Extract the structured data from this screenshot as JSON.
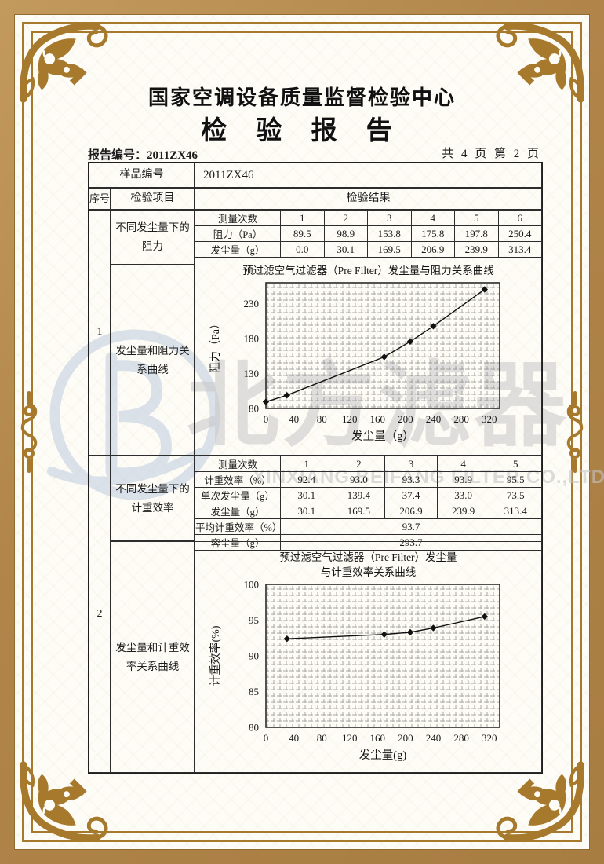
{
  "header": {
    "center_name": "国家空调设备质量监督检验中心",
    "doc_title": "检 验 报 告",
    "report_no_label": "报告编号：",
    "report_no": "2011ZX46",
    "page_info": "共 4 页 第 2 页"
  },
  "table": {
    "sample_label": "样品编号",
    "sample_no": "2011ZX46",
    "col_seq": "序号",
    "col_item": "检验项目",
    "col_result": "检验结果",
    "row1": {
      "seq": "1",
      "item_a": "不同发尘量下的阻力",
      "item_b": "发尘量和阻力关系曲线"
    },
    "row2": {
      "seq": "2",
      "item_a": "不同发尘量下的计重效率",
      "item_b": "发尘量和计重效率关系曲线"
    }
  },
  "resistance_table": {
    "rows": [
      {
        "label": "测量次数",
        "values": [
          "1",
          "2",
          "3",
          "4",
          "5",
          "6"
        ]
      },
      {
        "label": "阻力（Pa）",
        "values": [
          "89.5",
          "98.9",
          "153.8",
          "175.8",
          "197.8",
          "250.4"
        ]
      },
      {
        "label": "发尘量（g）",
        "values": [
          "0.0",
          "30.1",
          "169.5",
          "206.9",
          "239.9",
          "313.4"
        ]
      }
    ]
  },
  "efficiency_table": {
    "rows": [
      {
        "label": "测量次数",
        "values": [
          "1",
          "2",
          "3",
          "4",
          "5"
        ]
      },
      {
        "label": "计重效率（%）",
        "values": [
          "92.4",
          "93.0",
          "93.3",
          "93.9",
          "95.5"
        ]
      },
      {
        "label": "单次发尘量（g）",
        "values": [
          "30.1",
          "139.4",
          "37.4",
          "33.0",
          "73.5"
        ]
      },
      {
        "label": "发尘量（g）",
        "values": [
          "30.1",
          "169.5",
          "206.9",
          "239.9",
          "313.4"
        ]
      },
      {
        "label": "平均计重效率（%）",
        "values": [
          "93.7"
        ],
        "span": true
      },
      {
        "label": "容尘量（g）",
        "values": [
          "293.7"
        ],
        "span": true
      }
    ]
  },
  "chart_data": [
    {
      "type": "line",
      "title": "预过滤空气过滤器（Pre Filter）发尘量与阻力关系曲线",
      "xlabel": "发尘量（g）",
      "ylabel": "阻力（Pa）",
      "x": [
        0.0,
        30.1,
        169.5,
        206.9,
        239.9,
        313.4
      ],
      "y": [
        89.5,
        98.9,
        153.8,
        175.8,
        197.8,
        250.4
      ],
      "xlim": [
        0,
        335
      ],
      "ylim": [
        80,
        260
      ],
      "xticks": [
        0,
        40,
        80,
        120,
        160,
        200,
        240,
        280,
        320
      ],
      "yticks": [
        80,
        130,
        180,
        230
      ],
      "grid": "dense-minor-grid",
      "legend": "none",
      "marker": "diamond"
    },
    {
      "type": "line",
      "title": "预过滤空气过滤器（Pre Filter）发尘量\n与计重效率关系曲线",
      "xlabel": "发尘量(g)",
      "ylabel": "计重效率(%)",
      "x": [
        30.1,
        169.5,
        206.9,
        239.9,
        313.4
      ],
      "y": [
        92.4,
        93.0,
        93.3,
        93.9,
        95.5
      ],
      "xlim": [
        0,
        335
      ],
      "ylim": [
        80,
        100
      ],
      "xticks": [
        0,
        40,
        80,
        120,
        160,
        200,
        240,
        280,
        320
      ],
      "yticks": [
        80,
        85,
        90,
        95,
        100
      ],
      "grid": "dense-minor-grid",
      "legend": "none",
      "marker": "diamond"
    }
  ],
  "watermark": {
    "cn": "北方滤器",
    "en": "XINXIANG BEIFANG FILTER CO.,LTD.",
    "logo": "beifang-b-logo"
  },
  "colors": {
    "frame_gold": "#a6792c",
    "band_tan": "#b1854a",
    "paper": "#fdfcf6",
    "ink": "#1c1c1c",
    "watermark_gray": "#c7c7c7",
    "watermark_blue": "#b9c8de"
  }
}
